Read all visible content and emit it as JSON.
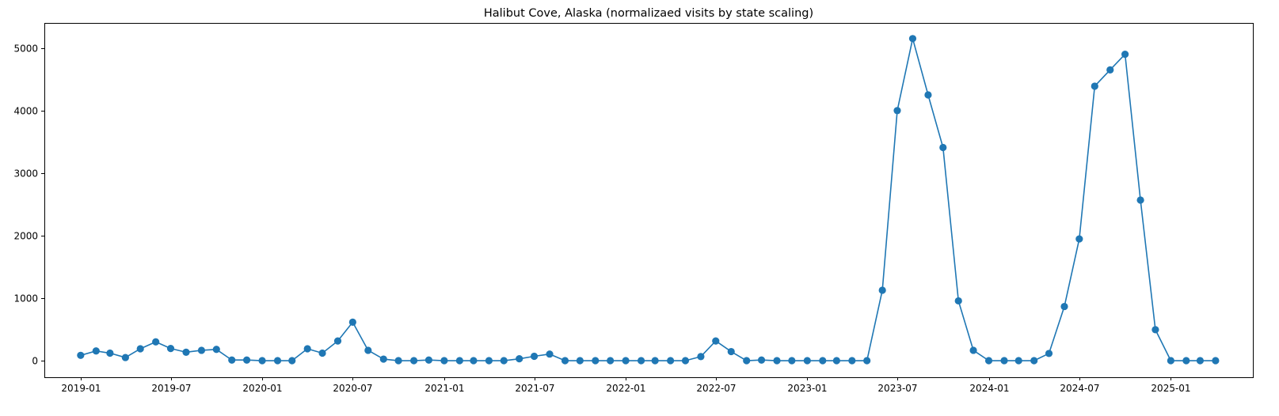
{
  "chart_data": {
    "type": "line",
    "title": "Halibut Cove, Alaska (normalizaed visits by state scaling)",
    "xlabel": "",
    "ylabel": "",
    "x_ticks": [
      "2019-01",
      "2019-07",
      "2020-01",
      "2020-07",
      "2021-01",
      "2021-07",
      "2022-01",
      "2022-07",
      "2023-01",
      "2023-07",
      "2024-01",
      "2024-07",
      "2025-01"
    ],
    "y_ticks": [
      0,
      1000,
      2000,
      3000,
      4000,
      5000
    ],
    "xlim": [
      "2018-10-20",
      "2025-06-15"
    ],
    "ylim": [
      -260,
      5400
    ],
    "grid": false,
    "series": [
      {
        "color": "#1f77b4",
        "marker": "circle",
        "x": [
          "2019-01-01",
          "2019-02-01",
          "2019-03-01",
          "2019-04-01",
          "2019-05-01",
          "2019-06-01",
          "2019-07-01",
          "2019-08-01",
          "2019-09-01",
          "2019-10-01",
          "2019-11-01",
          "2019-12-01",
          "2020-01-01",
          "2020-02-01",
          "2020-03-01",
          "2020-04-01",
          "2020-05-01",
          "2020-06-01",
          "2020-07-01",
          "2020-08-01",
          "2020-09-01",
          "2020-10-01",
          "2020-11-01",
          "2020-12-01",
          "2021-01-01",
          "2021-02-01",
          "2021-03-01",
          "2021-04-01",
          "2021-05-01",
          "2021-06-01",
          "2021-07-01",
          "2021-08-01",
          "2021-09-01",
          "2021-10-01",
          "2021-11-01",
          "2021-12-01",
          "2022-01-01",
          "2022-02-01",
          "2022-03-01",
          "2022-04-01",
          "2022-05-01",
          "2022-06-01",
          "2022-07-01",
          "2022-08-01",
          "2022-09-01",
          "2022-10-01",
          "2022-11-01",
          "2022-12-01",
          "2023-01-01",
          "2023-02-01",
          "2023-03-01",
          "2023-04-01",
          "2023-05-01",
          "2023-06-01",
          "2023-07-01",
          "2023-08-01",
          "2023-09-01",
          "2023-10-01",
          "2023-11-01",
          "2023-12-01",
          "2024-01-01",
          "2024-02-01",
          "2024-03-01",
          "2024-04-01",
          "2024-05-01",
          "2024-06-01",
          "2024-07-01",
          "2024-08-01",
          "2024-09-01",
          "2024-10-01",
          "2024-11-01",
          "2024-12-01",
          "2025-01-01",
          "2025-02-01",
          "2025-03-01",
          "2025-04-01"
        ],
        "values": [
          90,
          160,
          125,
          55,
          195,
          305,
          200,
          140,
          170,
          185,
          15,
          15,
          5,
          5,
          5,
          195,
          125,
          320,
          620,
          170,
          30,
          5,
          5,
          15,
          5,
          5,
          5,
          5,
          5,
          35,
          75,
          110,
          5,
          5,
          5,
          5,
          5,
          5,
          5,
          5,
          5,
          70,
          320,
          150,
          5,
          15,
          5,
          5,
          5,
          5,
          5,
          5,
          5,
          1130,
          4000,
          5150,
          4250,
          3410,
          960,
          170,
          5,
          5,
          5,
          5,
          120,
          870,
          1950,
          4390,
          4650,
          4900,
          2570,
          500,
          5,
          5,
          5,
          5
        ]
      }
    ]
  }
}
